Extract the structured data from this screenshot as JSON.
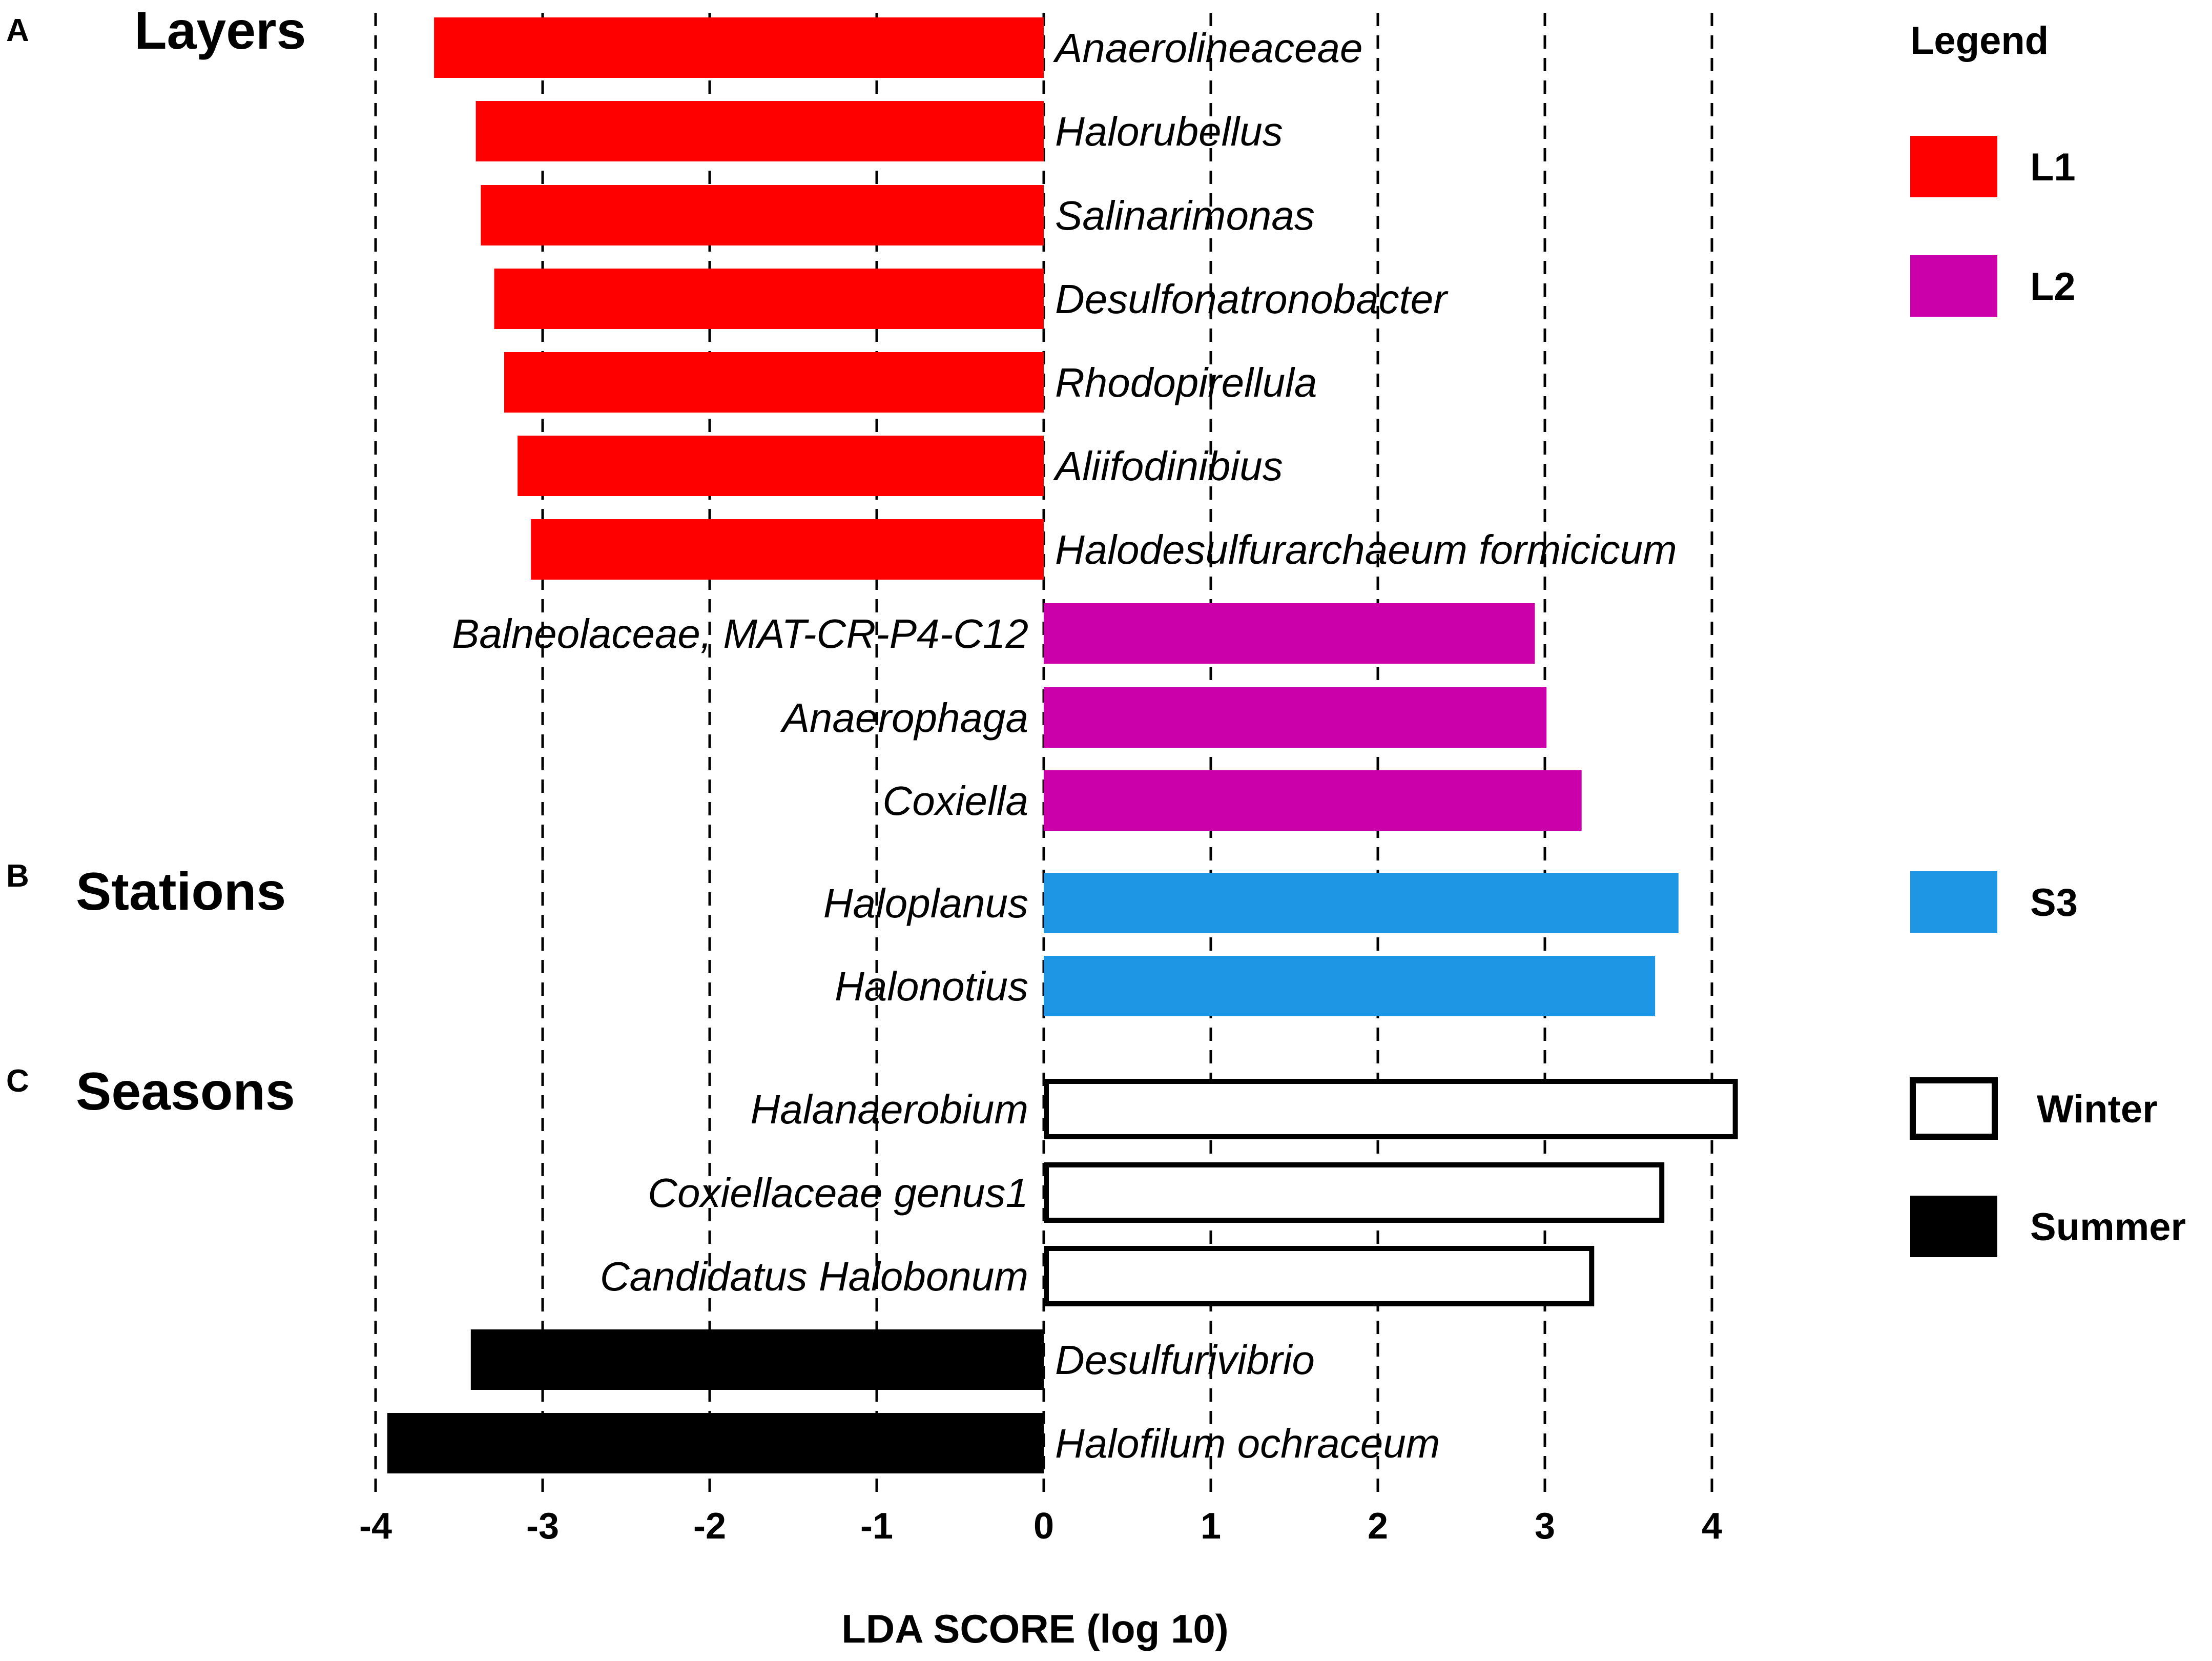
{
  "chart_data": {
    "type": "bar",
    "orientation": "horizontal",
    "xlabel": "LDA SCORE (log 10)",
    "xlim": [
      -4,
      4
    ],
    "xticks": [
      -4,
      -3,
      -2,
      -1,
      0,
      1,
      2,
      3,
      4
    ],
    "xtick_labels": [
      "-4",
      "-3",
      "-2",
      "-1",
      "0",
      "1",
      "2",
      "3",
      "4"
    ],
    "grid": "vertical dashed",
    "sections": [
      {
        "letter": "A",
        "title": "Layers"
      },
      {
        "letter": "B",
        "title": "Stations"
      },
      {
        "letter": "C",
        "title": "Seasons"
      }
    ],
    "bars": [
      {
        "label": "Anaerolineaceae",
        "value": -3.65,
        "group": "L1",
        "section": 0
      },
      {
        "label": "Halorubellus",
        "value": -3.4,
        "group": "L1",
        "section": 0
      },
      {
        "label": "Salinarimonas",
        "value": -3.37,
        "group": "L1",
        "section": 0
      },
      {
        "label": "Desulfonatronobacter",
        "value": -3.29,
        "group": "L1",
        "section": 0
      },
      {
        "label": "Rhodopirellula",
        "value": -3.23,
        "group": "L1",
        "section": 0
      },
      {
        "label": "Aliifodinibius",
        "value": -3.15,
        "group": "L1",
        "section": 0
      },
      {
        "label": "Halodesulfurarchaeum formicicum",
        "value": -3.07,
        "group": "L1",
        "section": 0
      },
      {
        "label": "Balneolaceae, MAT-CR-P4-C12",
        "value": 2.94,
        "group": "L2",
        "section": 0
      },
      {
        "label": "Anaerophaga",
        "value": 3.01,
        "group": "L2",
        "section": 0
      },
      {
        "label": "Coxiella",
        "value": 3.22,
        "group": "L2",
        "section": 0
      },
      {
        "label": "Haloplanus",
        "value": 3.8,
        "group": "S3",
        "section": 1
      },
      {
        "label": "Halonotius",
        "value": 3.66,
        "group": "S3",
        "section": 1
      },
      {
        "label": "Halanaerobium",
        "value": 4.14,
        "group": "Winter",
        "section": 2
      },
      {
        "label": "Coxiellaceae genus1",
        "value": 3.7,
        "group": "Winter",
        "section": 2
      },
      {
        "label": "Candidatus Halobonum",
        "value": 3.28,
        "group": "Winter",
        "section": 2
      },
      {
        "label": "Desulfurivibrio",
        "value": -3.43,
        "group": "Summer",
        "section": 2
      },
      {
        "label": "Halofilum ochraceum",
        "value": -3.93,
        "group": "Summer",
        "section": 2
      }
    ],
    "legend": {
      "title": "Legend",
      "placement": "right",
      "entries": [
        {
          "key": "L1",
          "label": "L1",
          "fill": "#ff0000",
          "stroke": "none"
        },
        {
          "key": "L2",
          "label": "L2",
          "fill": "#cc00aa",
          "stroke": "none"
        },
        {
          "key": "S3",
          "label": "S3",
          "fill": "#1f96e4",
          "stroke": "none"
        },
        {
          "key": "Winter",
          "label": "Winter",
          "fill": "#ffffff",
          "stroke": "#000000"
        },
        {
          "key": "Summer",
          "label": "Summer",
          "fill": "#000000",
          "stroke": "none"
        }
      ]
    }
  }
}
